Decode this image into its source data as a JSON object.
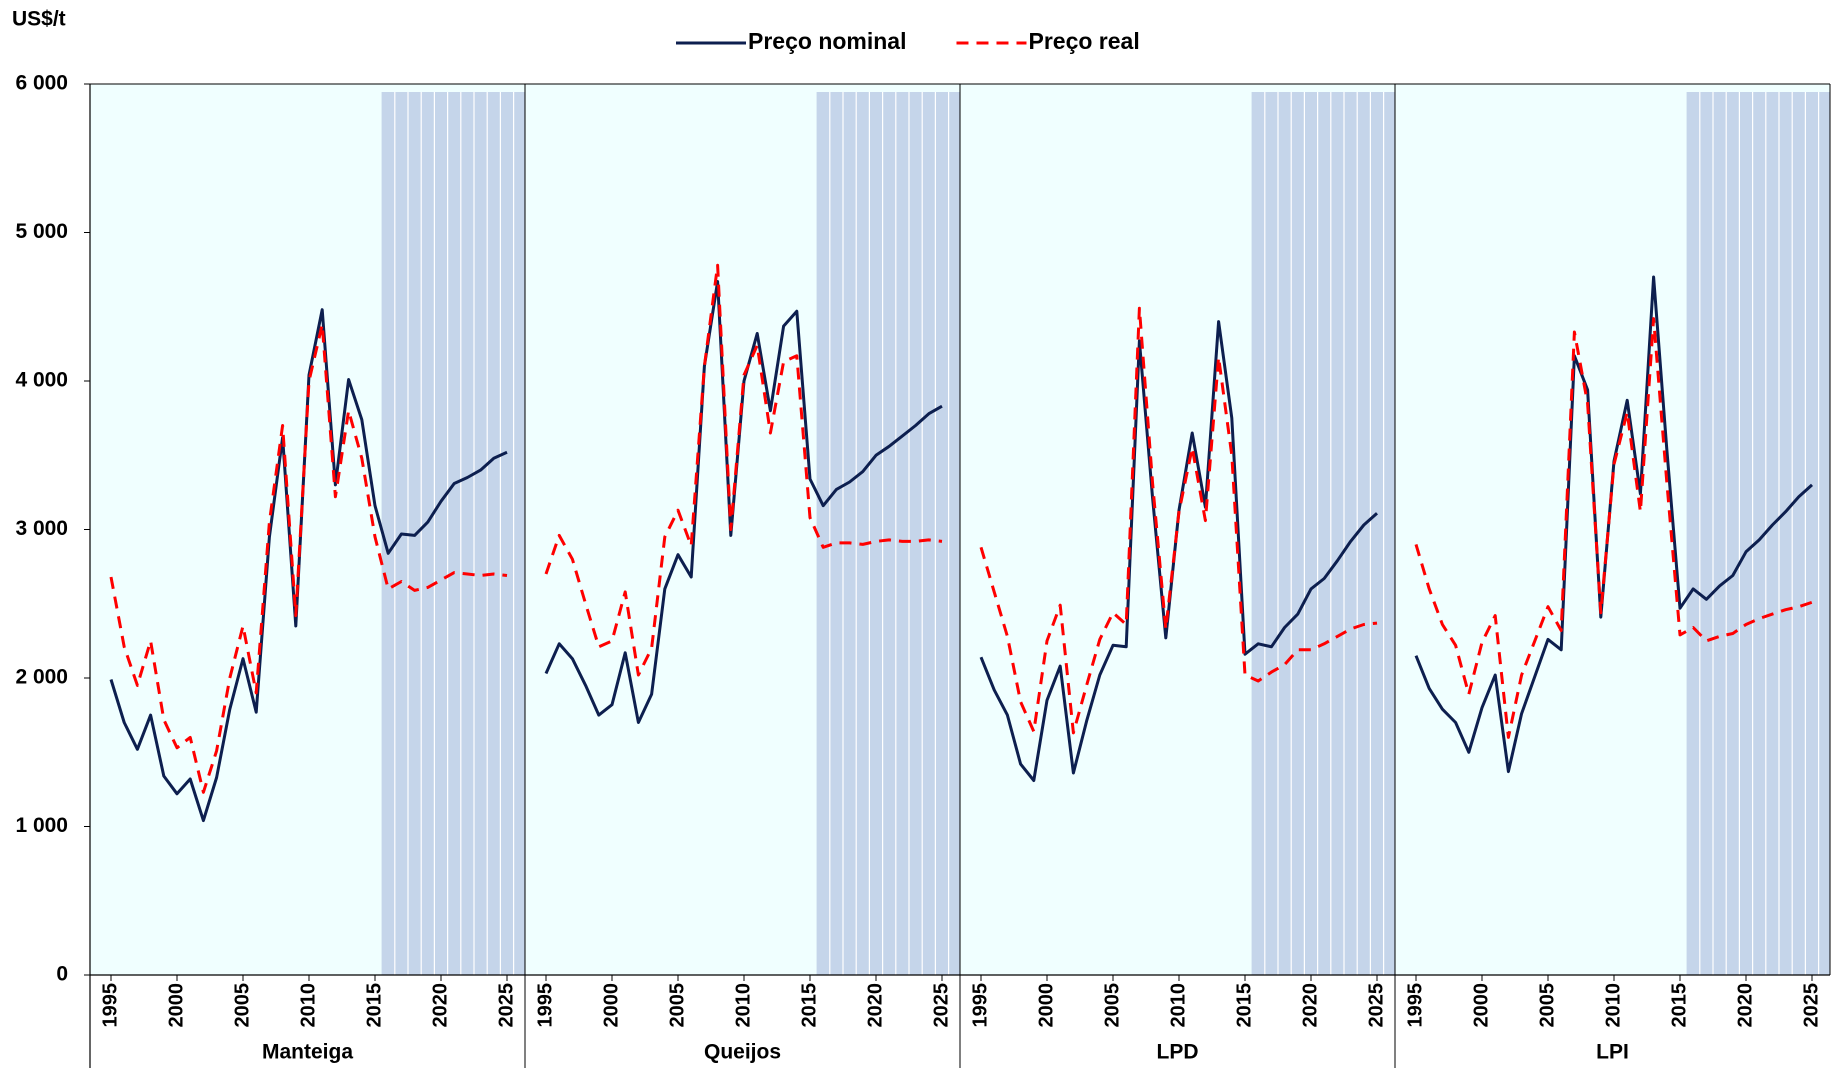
{
  "chart_data": {
    "type": "line",
    "y_label": "US$/t",
    "ylim": [
      0,
      6000
    ],
    "yticks": [
      0,
      {
        "value": 1000,
        "label": "1 000"
      },
      {
        "value": 2000,
        "label": "2 000"
      },
      {
        "value": 3000,
        "label": "3 000"
      },
      {
        "value": 4000,
        "label": "4 000"
      },
      {
        "value": 5000,
        "label": "5 000"
      },
      {
        "value": 6000,
        "label": "6 000"
      }
    ],
    "x": [
      1995,
      1996,
      1997,
      1998,
      1999,
      2000,
      2001,
      2002,
      2003,
      2004,
      2005,
      2006,
      2007,
      2008,
      2009,
      2010,
      2011,
      2012,
      2013,
      2014,
      2015,
      2016,
      2017,
      2018,
      2019,
      2020,
      2021,
      2022,
      2023,
      2024,
      2025
    ],
    "xticks": [
      1995,
      2000,
      2005,
      2010,
      2015,
      2020,
      2025
    ],
    "projection_from": 2016,
    "series": [
      {
        "name": "Preço nominal",
        "color": "#0d1f4f",
        "dash": false
      },
      {
        "name": "Preço real",
        "color": "#ff0000",
        "dash": true
      }
    ],
    "panels": [
      {
        "label": "Manteiga",
        "series_values": [
          [
            1990,
            1700,
            1520,
            1750,
            1340,
            1220,
            1320,
            1040,
            1330,
            1790,
            2130,
            1770,
            2950,
            3620,
            2350,
            4040,
            4480,
            3300,
            4010,
            3740,
            3160,
            2840,
            2970,
            2960,
            3050,
            3190,
            3310,
            3350,
            3400,
            3480,
            3520
          ],
          [
            2680,
            2210,
            1950,
            2250,
            1720,
            1530,
            1600,
            1230,
            1510,
            2000,
            2350,
            1900,
            3050,
            3700,
            2420,
            4000,
            4380,
            3220,
            3800,
            3480,
            2950,
            2600,
            2650,
            2590,
            2610,
            2660,
            2710,
            2700,
            2690,
            2700,
            2690
          ]
        ]
      },
      {
        "label": "Queijos",
        "series_values": [
          [
            2030,
            2230,
            2130,
            1950,
            1750,
            1820,
            2170,
            1700,
            1890,
            2600,
            2830,
            2680,
            4100,
            4670,
            2960,
            4000,
            4320,
            3800,
            4370,
            4470,
            3340,
            3160,
            3270,
            3320,
            3390,
            3500,
            3560,
            3630,
            3700,
            3780,
            3830
          ],
          [
            2700,
            2960,
            2800,
            2500,
            2210,
            2250,
            2580,
            2020,
            2200,
            2950,
            3130,
            2890,
            4100,
            4780,
            3000,
            4040,
            4240,
            3650,
            4130,
            4170,
            3080,
            2880,
            2910,
            2910,
            2900,
            2920,
            2930,
            2920,
            2920,
            2930,
            2920
          ]
        ]
      },
      {
        "label": "LPD",
        "series_values": [
          [
            2140,
            1920,
            1750,
            1420,
            1310,
            1850,
            2080,
            1360,
            1710,
            2020,
            2220,
            2210,
            4270,
            3210,
            2270,
            3130,
            3650,
            3150,
            4400,
            3750,
            2160,
            2230,
            2210,
            2340,
            2430,
            2600,
            2670,
            2790,
            2920,
            3030,
            3110
          ],
          [
            2880,
            2580,
            2280,
            1840,
            1640,
            2250,
            2490,
            1630,
            1950,
            2260,
            2440,
            2360,
            4490,
            3310,
            2330,
            3120,
            3550,
            3060,
            4160,
            3500,
            2020,
            1980,
            2040,
            2090,
            2190,
            2190,
            2230,
            2280,
            2330,
            2360,
            2370
          ]
        ]
      },
      {
        "label": "LPI",
        "series_values": [
          [
            2150,
            1930,
            1790,
            1700,
            1500,
            1800,
            2020,
            1370,
            1760,
            2010,
            2260,
            2190,
            4170,
            3940,
            2410,
            3460,
            3870,
            3240,
            4700,
            3540,
            2470,
            2600,
            2530,
            2620,
            2690,
            2850,
            2930,
            3030,
            3120,
            3220,
            3300
          ],
          [
            2900,
            2600,
            2360,
            2220,
            1890,
            2240,
            2420,
            1600,
            2020,
            2250,
            2480,
            2320,
            4330,
            3850,
            2440,
            3440,
            3790,
            3120,
            4420,
            3320,
            2290,
            2340,
            2250,
            2280,
            2300,
            2360,
            2400,
            2430,
            2460,
            2480,
            2510
          ]
        ]
      }
    ]
  }
}
